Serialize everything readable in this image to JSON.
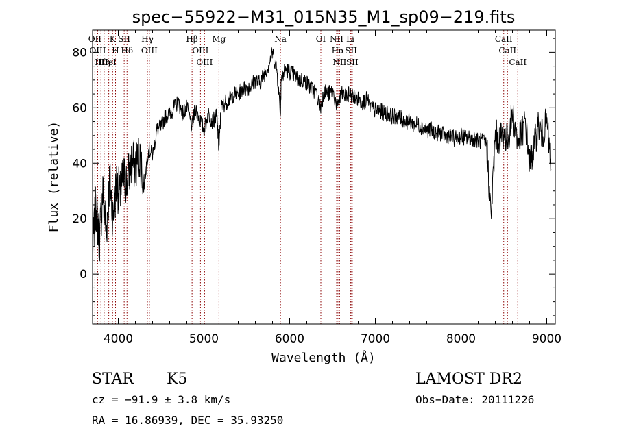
{
  "chart_data": {
    "type": "line",
    "title": "spec−55922−M31_015N35_M1_sp09−219.fits",
    "xlabel": "Wavelength (Å)",
    "ylabel": "Flux (relative)",
    "xlim": [
      3700,
      9100
    ],
    "ylim": [
      -18,
      88
    ],
    "x_ticks": [
      4000,
      5000,
      6000,
      7000,
      8000,
      9000
    ],
    "y_ticks": [
      0,
      20,
      40,
      60,
      80
    ],
    "grid": false,
    "line_color": "#000000",
    "marker_color": "#8b0000",
    "spectrum": {
      "x": [
        3700,
        3740,
        3780,
        3820,
        3860,
        3900,
        3940,
        3980,
        4020,
        4060,
        4100,
        4150,
        4200,
        4250,
        4300,
        4350,
        4400,
        4450,
        4500,
        4550,
        4600,
        4650,
        4700,
        4750,
        4800,
        4861,
        4900,
        4950,
        5000,
        5050,
        5100,
        5150,
        5175,
        5200,
        5250,
        5300,
        5350,
        5400,
        5450,
        5500,
        5550,
        5600,
        5650,
        5700,
        5750,
        5800,
        5850,
        5893,
        5900,
        5950,
        6000,
        6050,
        6100,
        6150,
        6200,
        6250,
        6300,
        6363,
        6400,
        6450,
        6500,
        6563,
        6600,
        6650,
        6700,
        6750,
        6800,
        6850,
        6900,
        6950,
        7000,
        7050,
        7100,
        7150,
        7200,
        7250,
        7300,
        7350,
        7400,
        7450,
        7500,
        7550,
        7600,
        7650,
        7700,
        7750,
        7800,
        7850,
        7900,
        7950,
        8000,
        8050,
        8100,
        8150,
        8200,
        8250,
        8300,
        8350,
        8400,
        8450,
        8500,
        8542,
        8600,
        8662,
        8700,
        8750,
        8800,
        8850,
        8900,
        8950,
        9000,
        9050
      ],
      "y": [
        8,
        25,
        12,
        30,
        15,
        34,
        20,
        33,
        28,
        35,
        33,
        40,
        39,
        43,
        32,
        45,
        43,
        52,
        53,
        57,
        58,
        60,
        62,
        58,
        60,
        53,
        60,
        56,
        52,
        58,
        55,
        57,
        45,
        60,
        62,
        63,
        65,
        65,
        67,
        67,
        68,
        70,
        69,
        72,
        75,
        80,
        74,
        58,
        70,
        74,
        73,
        72,
        70,
        70,
        69,
        67,
        66,
        60,
        66,
        65,
        66,
        60,
        65,
        64,
        65,
        64,
        63,
        62,
        63,
        60,
        59,
        59,
        58,
        58,
        57,
        57,
        56,
        55,
        55,
        54,
        54,
        53,
        52,
        52,
        51,
        51,
        50,
        50,
        49,
        49,
        50,
        49,
        49,
        49,
        48,
        48,
        47,
        20,
        50,
        49,
        51,
        48,
        58,
        48,
        50,
        55,
        40,
        45,
        54,
        50,
        55,
        38
      ]
    },
    "absorption_lines": [
      {
        "name": "Hθ",
        "wavelength": 3798
      },
      {
        "name": "OII",
        "wavelength": 3727
      },
      {
        "name": "OIII",
        "wavelength": 3760
      },
      {
        "name": "Hη",
        "wavelength": 3835
      },
      {
        "name": "K",
        "wavelength": 3934
      },
      {
        "name": "HeI",
        "wavelength": 3889
      },
      {
        "name": "H",
        "wavelength": 3968
      },
      {
        "name": "SII",
        "wavelength": 4069
      },
      {
        "name": "Hδ",
        "wavelength": 4102
      },
      {
        "name": "OIII",
        "wavelength": 4363
      },
      {
        "name": "Hγ",
        "wavelength": 4340
      },
      {
        "name": "Hβ",
        "wavelength": 4861
      },
      {
        "name": "OIII",
        "wavelength": 4959
      },
      {
        "name": "OIII",
        "wavelength": 5007
      },
      {
        "name": "Mg",
        "wavelength": 5175
      },
      {
        "name": "Na",
        "wavelength": 5893
      },
      {
        "name": "OI",
        "wavelength": 6364
      },
      {
        "name": "NII",
        "wavelength": 6548
      },
      {
        "name": "NII",
        "wavelength": 6583
      },
      {
        "name": "Hα",
        "wavelength": 6563
      },
      {
        "name": "Li",
        "wavelength": 6708
      },
      {
        "name": "SII",
        "wavelength": 6717
      },
      {
        "name": "SII",
        "wavelength": 6731
      },
      {
        "name": "CaII",
        "wavelength": 8542
      },
      {
        "name": "CaII",
        "wavelength": 8662
      },
      {
        "name": "CaII",
        "wavelength": 8498
      }
    ]
  },
  "info": {
    "class_label": "STAR",
    "subclass": "K5",
    "survey": "LAMOST DR2",
    "cz": "cz = −91.9 ± 3.8 km/s",
    "obs_date": "Obs−Date: 20111226",
    "radec": "RA =  16.86939, DEC =  35.93250"
  }
}
